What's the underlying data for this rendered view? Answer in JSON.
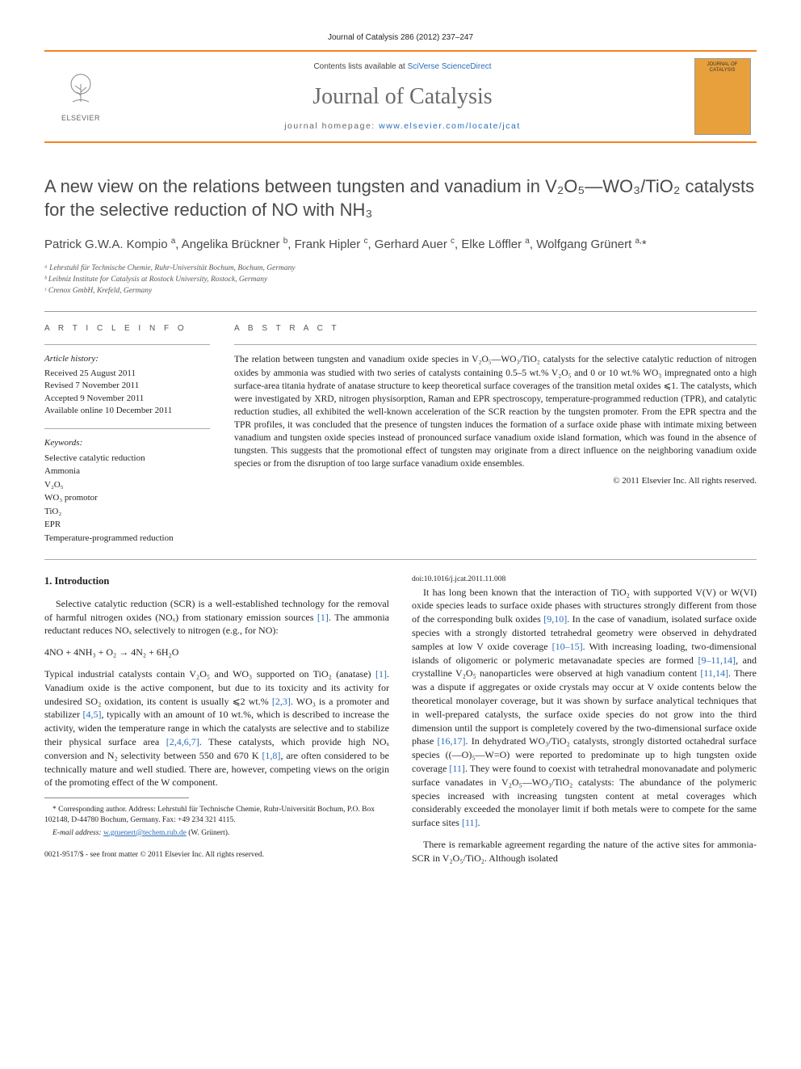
{
  "journal_ref": "Journal of Catalysis 286 (2012) 237–247",
  "banner": {
    "contents_prefix": "Contents lists available at ",
    "contents_link": "SciVerse ScienceDirect",
    "journal_name": "Journal of Catalysis",
    "homepage_prefix": "journal homepage: ",
    "homepage_url": "www.elsevier.com/locate/jcat",
    "publisher": "ELSEVIER",
    "cover_label": "JOURNAL OF CATALYSIS"
  },
  "title": "A new view on the relations between tungsten and vanadium in V₂O₅—WO₃/TiO₂ catalysts for the selective reduction of NO with NH₃",
  "authors_html": "Patrick G.W.A. Kompio <sup>a</sup>, Angelika Brückner <sup>b</sup>, Frank Hipler <sup>c</sup>, Gerhard Auer <sup>c</sup>, Elke Löffler <sup>a</sup>, Wolfgang Grünert <sup>a,</sup>*",
  "affiliations": [
    "ᵃ Lehrstuhl für Technische Chemie, Ruhr-Universität Bochum, Bochum, Germany",
    "ᵇ Leibniz Institute for Catalysis at Rostock University, Rostock, Germany",
    "ᶜ Crenox GmbH, Krefeld, Germany"
  ],
  "article_info": {
    "label": "A R T I C L E   I N F O",
    "history_head": "Article history:",
    "history": [
      "Received 25 August 2011",
      "Revised 7 November 2011",
      "Accepted 9 November 2011",
      "Available online 10 December 2011"
    ],
    "keywords_head": "Keywords:",
    "keywords": [
      "Selective catalytic reduction",
      "Ammonia",
      "V₂O₅",
      "WO₃ promotor",
      "TiO₂",
      "EPR",
      "Temperature-programmed reduction"
    ]
  },
  "abstract": {
    "label": "A B S T R A C T",
    "text": "The relation between tungsten and vanadium oxide species in V₂O₅—WO₃/TiO₂ catalysts for the selective catalytic reduction of nitrogen oxides by ammonia was studied with two series of catalysts containing 0.5–5 wt.% V₂O₅ and 0 or 10 wt.% WO₃ impregnated onto a high surface-area titania hydrate of anatase structure to keep theoretical surface coverages of the transition metal oxides ⩽1. The catalysts, which were investigated by XRD, nitrogen physisorption, Raman and EPR spectroscopy, temperature-programmed reduction (TPR), and catalytic reduction studies, all exhibited the well-known acceleration of the SCR reaction by the tungsten promoter. From the EPR spectra and the TPR profiles, it was concluded that the presence of tungsten induces the formation of a surface oxide phase with intimate mixing between vanadium and tungsten oxide species instead of pronounced surface vanadium oxide island formation, which was found in the absence of tungsten. This suggests that the promotional effect of tungsten may originate from a direct influence on the neighboring vanadium oxide species or from the disruption of too large surface vanadium oxide ensembles.",
    "copyright": "© 2011 Elsevier Inc. All rights reserved."
  },
  "body": {
    "section_heading": "1. Introduction",
    "p1": "Selective catalytic reduction (SCR) is a well-established technology for the removal of harmful nitrogen oxides (NOₓ) from stationary emission sources [1]. The ammonia reductant reduces NOₓ selectively to nitrogen (e.g., for NO):",
    "equation": "4NO + 4NH₃ + O₂ → 4N₂ + 6H₂O",
    "p2": "Typical industrial catalysts contain V₂O₅ and WO₃ supported on TiO₂ (anatase) [1]. Vanadium oxide is the active component, but due to its toxicity and its activity for undesired SO₂ oxidation, its content is usually ⩽2 wt.% [2,3]. WO₃ is a promoter and stabilizer [4,5], typically with an amount of 10 wt.%, which is described to increase the activity, widen the temperature range in which the catalysts are selective and to stabilize their physical surface area [2,4,6,7]. These catalysts, which provide high NOₓ conversion and N₂ selectivity between 550 and 670 K [1,8], are often considered to be technically mature and well studied. There are, however, competing views on the origin of the promoting effect of the W component.",
    "p3": "It has long been known that the interaction of TiO₂ with supported V(V) or W(VI) oxide species leads to surface oxide phases with structures strongly different from those of the corresponding bulk oxides [9,10]. In the case of vanadium, isolated surface oxide species with a strongly distorted tetrahedral geometry were observed in dehydrated samples at low V oxide coverage [10–15]. With increasing loading, two-dimensional islands of oligomeric or polymeric metavanadate species are formed [9–11,14], and crystalline V₂O₅ nanoparticles were observed at high vanadium content [11,14]. There was a dispute if aggregates or oxide crystals may occur at V oxide contents below the theoretical monolayer coverage, but it was shown by surface analytical techniques that in well-prepared catalysts, the surface oxide species do not grow into the third dimension until the support is completely covered by the two-dimensional surface oxide phase [16,17]. In dehydrated WO₃/TiO₂ catalysts, strongly distorted octahedral surface species ((—O)₅—W=O) were reported to predominate up to high tungsten oxide coverage [11]. They were found to coexist with tetrahedral monovanadate and polymeric surface vanadates in V₂O₅—WO₃/TiO₂ catalysts: The abundance of the polymeric species increased with increasing tungsten content at metal coverages which considerably exceeded the monolayer limit if both metals were to compete for the same surface sites [11].",
    "p4": "There is remarkable agreement regarding the nature of the active sites for ammonia-SCR in V₂O₅/TiO₂. Although isolated"
  },
  "footnotes": {
    "corr": "* Corresponding author. Address: Lehrstuhl für Technische Chemie, Ruhr-Universität Bochum, P.O. Box 102148, D-44780 Bochum, Germany. Fax: +49 234 321 4115.",
    "email_label": "E-mail address:",
    "email": "w.gruenert@techem.rub.de",
    "email_who": " (W. Grünert)."
  },
  "footer": {
    "issn": "0021-9517/$ - see front matter © 2011 Elsevier Inc. All rights reserved.",
    "doi": "doi:10.1016/j.jcat.2011.11.008"
  },
  "colors": {
    "orange_rule": "#f58220",
    "link": "#2a6ebb",
    "heading_gray": "#4a4a4a"
  }
}
